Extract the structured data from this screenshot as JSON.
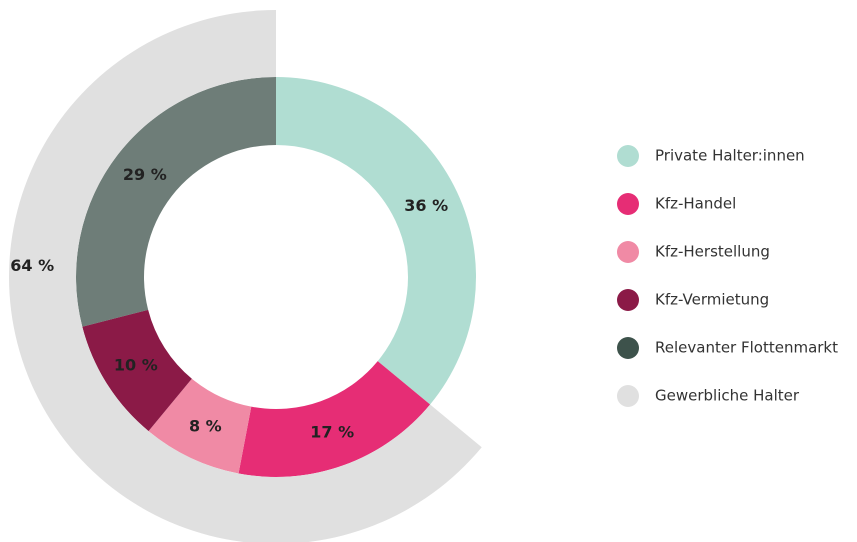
{
  "chart_data": {
    "type": "nested-donut",
    "rings": [
      {
        "categories": [
          "Private Halter:innen",
          "Kfz-Handel",
          "Kfz-Herstellung",
          "Kfz-Vermietung",
          "Relevanter Flottenmarkt"
        ],
        "values": [
          36,
          17,
          8,
          10,
          29
        ],
        "value_labels": [
          "36 %",
          "17 %",
          "8 %",
          "10 %",
          "29 %"
        ],
        "colors": [
          "#b0ddd2",
          "#e62d75",
          "#f08aa5",
          "#8b1a47",
          "#3d524b"
        ]
      },
      {
        "categories": [
          "Gewerbliche Halter"
        ],
        "values": [
          64
        ],
        "value_labels": [
          "64 %"
        ],
        "colors": [
          "#e0e0e0"
        ]
      }
    ]
  }
}
